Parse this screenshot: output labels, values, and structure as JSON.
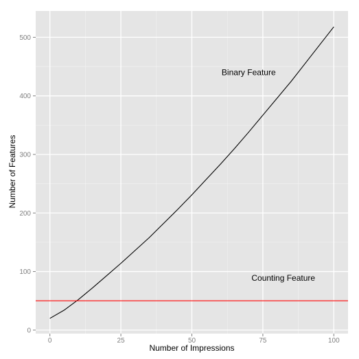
{
  "chart_data": {
    "type": "line",
    "title": "",
    "xlabel": "Number of Impressions",
    "ylabel": "Number of Features",
    "xlim": [
      -5,
      105
    ],
    "ylim": [
      -6,
      545
    ],
    "x_ticks": [
      0,
      25,
      50,
      75,
      100
    ],
    "y_ticks": [
      0,
      100,
      200,
      300,
      400,
      500
    ],
    "grid": true,
    "legend": "none",
    "series": [
      {
        "color": "#000000",
        "x": [
          0,
          5,
          10,
          15,
          20,
          25,
          30,
          35,
          40,
          45,
          50,
          55,
          60,
          65,
          70,
          75,
          80,
          85,
          90,
          95,
          100
        ],
        "y": [
          20,
          34,
          52,
          72,
          93,
          114,
          136,
          158,
          182,
          206,
          231,
          257,
          283,
          310,
          338,
          367,
          396,
          425,
          456,
          487,
          518
        ]
      },
      {
        "color": "#ff0000",
        "x": [
          -5,
          105
        ],
        "y": [
          50,
          50
        ]
      }
    ],
    "annotations": [
      {
        "text": "Binary Feature",
        "x": 60.5,
        "y": 440
      },
      {
        "text": "Counting Feature",
        "x": 71,
        "y": 89
      }
    ]
  }
}
